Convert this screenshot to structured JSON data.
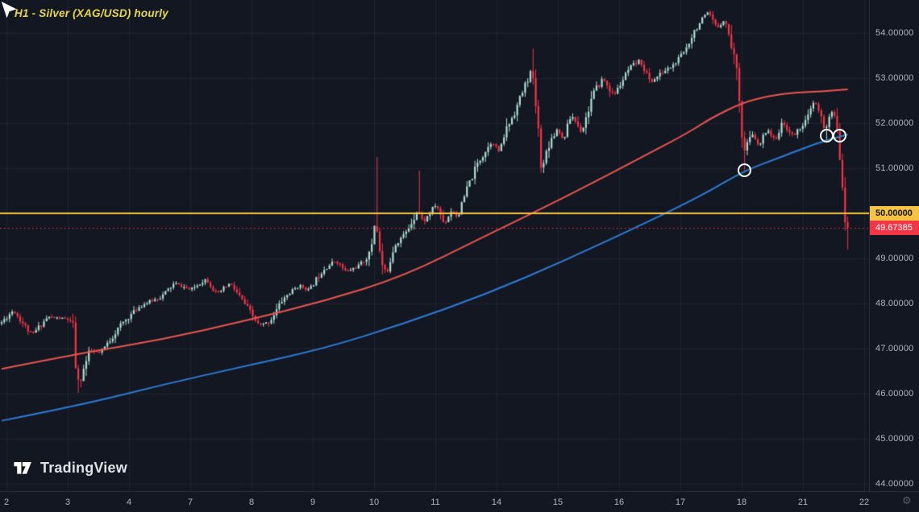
{
  "chart_data": {
    "type": "candlestick",
    "title": "H1 - Silver (XAG/USD) hourly",
    "symbol": "XAG/USD",
    "timeframe": "H1 (hourly)",
    "x_axis": {
      "labels": [
        "2",
        "3",
        "4",
        "7",
        "8",
        "9",
        "10",
        "11",
        "14",
        "15",
        "16",
        "17",
        "18",
        "21",
        "22"
      ],
      "unit": "day of month"
    },
    "y_axis": {
      "ticks": [
        "54.00000",
        "53.00000",
        "52.00000",
        "51.00000",
        "50.00000",
        "49.00000",
        "48.00000",
        "47.00000",
        "46.00000",
        "45.00000",
        "44.00000"
      ],
      "ylim": [
        43.84,
        54.73
      ]
    },
    "n_bars": 321,
    "bars_per_day": 23,
    "price_keyframes": [
      [
        0,
        47.55
      ],
      [
        5,
        47.85
      ],
      [
        12,
        47.3
      ],
      [
        18,
        47.7
      ],
      [
        26,
        47.65
      ],
      [
        28,
        47.4
      ],
      [
        29,
        46.1
      ],
      [
        34,
        46.95
      ],
      [
        38,
        46.9
      ],
      [
        46,
        47.55
      ],
      [
        53,
        47.95
      ],
      [
        61,
        48.15
      ],
      [
        66,
        48.45
      ],
      [
        72,
        48.3
      ],
      [
        78,
        48.55
      ],
      [
        82,
        48.2
      ],
      [
        87,
        48.45
      ],
      [
        93,
        47.95
      ],
      [
        98,
        47.5
      ],
      [
        102,
        47.6
      ],
      [
        107,
        48.1
      ],
      [
        113,
        48.4
      ],
      [
        117,
        48.3
      ],
      [
        122,
        48.75
      ],
      [
        127,
        48.95
      ],
      [
        131,
        48.7
      ],
      [
        136,
        48.85
      ],
      [
        140,
        49.1
      ],
      [
        142,
        49.9
      ],
      [
        144,
        48.95
      ],
      [
        146,
        48.6
      ],
      [
        149,
        49.3
      ],
      [
        154,
        49.6
      ],
      [
        158,
        50.1
      ],
      [
        160,
        49.8
      ],
      [
        165,
        50.2
      ],
      [
        168,
        49.75
      ],
      [
        171,
        50.1
      ],
      [
        173,
        49.9
      ],
      [
        177,
        50.6
      ],
      [
        181,
        51.15
      ],
      [
        186,
        51.6
      ],
      [
        189,
        51.35
      ],
      [
        191,
        51.8
      ],
      [
        195,
        52.3
      ],
      [
        198,
        52.75
      ],
      [
        201,
        53.2
      ],
      [
        203,
        52.2
      ],
      [
        205,
        50.9
      ],
      [
        207,
        51.5
      ],
      [
        211,
        51.9
      ],
      [
        213,
        51.6
      ],
      [
        216,
        52.2
      ],
      [
        220,
        51.8
      ],
      [
        224,
        52.6
      ],
      [
        228,
        53.0
      ],
      [
        232,
        52.6
      ],
      [
        235,
        52.9
      ],
      [
        238,
        53.2
      ],
      [
        242,
        53.4
      ],
      [
        246,
        52.9
      ],
      [
        250,
        53.1
      ],
      [
        255,
        53.3
      ],
      [
        259,
        53.6
      ],
      [
        262,
        54.0
      ],
      [
        265,
        54.25
      ],
      [
        268,
        54.45
      ],
      [
        271,
        54.1
      ],
      [
        274,
        54.3
      ],
      [
        276,
        53.9
      ],
      [
        278,
        53.4
      ],
      [
        280,
        52.45
      ],
      [
        281,
        51.3
      ],
      [
        283,
        51.6
      ],
      [
        285,
        51.75
      ],
      [
        287,
        51.45
      ],
      [
        290,
        51.9
      ],
      [
        293,
        51.6
      ],
      [
        296,
        52.0
      ],
      [
        300,
        51.7
      ],
      [
        303,
        51.95
      ],
      [
        305,
        52.05
      ],
      [
        308,
        52.5
      ],
      [
        310,
        52.2
      ],
      [
        312,
        51.8
      ],
      [
        314,
        52.25
      ],
      [
        316,
        52.1
      ],
      [
        317,
        51.85
      ],
      [
        318,
        50.9
      ],
      [
        319,
        50.1
      ],
      [
        320,
        49.67
      ]
    ],
    "wick_events": [
      {
        "i": 29,
        "low": 46.02
      },
      {
        "i": 142,
        "high": 51.25
      },
      {
        "i": 158,
        "high": 50.95
      },
      {
        "i": 201,
        "high": 53.65
      },
      {
        "i": 281,
        "low": 50.95
      },
      {
        "i": 312,
        "low": 51.6
      },
      {
        "i": 317,
        "low": 51.6
      },
      {
        "i": 320,
        "low": 49.2
      }
    ],
    "ma_fast": {
      "color": "#e8554e",
      "points": [
        [
          0,
          46.55
        ],
        [
          30,
          46.9
        ],
        [
          61,
          47.2
        ],
        [
          91,
          47.6
        ],
        [
          122,
          48.05
        ],
        [
          152,
          48.6
        ],
        [
          183,
          49.5
        ],
        [
          213,
          50.35
        ],
        [
          244,
          51.3
        ],
        [
          260,
          51.8
        ],
        [
          268,
          52.1
        ],
        [
          280,
          52.45
        ],
        [
          290,
          52.6
        ],
        [
          300,
          52.68
        ],
        [
          310,
          52.7
        ],
        [
          320,
          52.75
        ]
      ]
    },
    "ma_slow": {
      "color": "#2e7bd4",
      "points": [
        [
          0,
          45.4
        ],
        [
          30,
          45.75
        ],
        [
          61,
          46.2
        ],
        [
          91,
          46.6
        ],
        [
          122,
          47.0
        ],
        [
          152,
          47.55
        ],
        [
          183,
          48.2
        ],
        [
          213,
          48.95
        ],
        [
          244,
          49.8
        ],
        [
          265,
          50.4
        ],
        [
          281,
          50.95
        ],
        [
          295,
          51.25
        ],
        [
          308,
          51.55
        ],
        [
          320,
          51.75
        ]
      ]
    },
    "levels": [
      {
        "price": 50.0,
        "label": "50.00000",
        "color": "#f5c242",
        "style": "solid"
      }
    ],
    "last_price": {
      "value": 49.67385,
      "label": "49.67385",
      "color": "#f23645",
      "style": "dotted"
    },
    "markers": [
      {
        "i": 281,
        "price": 50.95
      },
      {
        "i": 312,
        "price": 51.72
      },
      {
        "i": 317,
        "price": 51.72
      }
    ],
    "arrow": {
      "i": 318.5,
      "price": 49.55
    },
    "colors": {
      "background": "#131722",
      "grid": "rgba(255,255,255,0.06)",
      "up": "#aedfd3",
      "down": "#f23645",
      "axis_text": "#b2b5be",
      "title": "#e8d64f"
    },
    "grid": true,
    "legend_position": "none",
    "seed": 11
  },
  "watermark": {
    "label": "TradingView"
  },
  "icons": {
    "settings": "⚙"
  }
}
